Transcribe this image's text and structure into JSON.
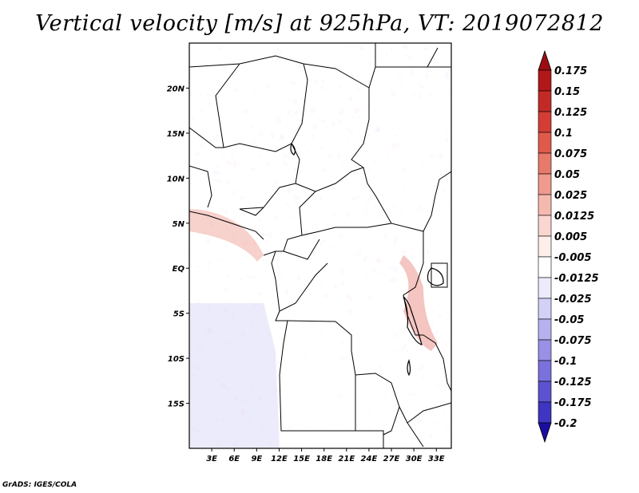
{
  "title": "Vertical velocity [m/s] at 925hPa, VT: 2019072812",
  "credit": "GrADS: IGES/COLA",
  "map": {
    "lon_range": [
      0,
      35
    ],
    "lat_range": [
      -20,
      25
    ],
    "lat_ticks": [
      {
        "value": 20,
        "label": "20N"
      },
      {
        "value": 15,
        "label": "15N"
      },
      {
        "value": 10,
        "label": "10N"
      },
      {
        "value": 5,
        "label": "5N"
      },
      {
        "value": 0,
        "label": "EQ"
      },
      {
        "value": -5,
        "label": "5S"
      },
      {
        "value": -10,
        "label": "10S"
      },
      {
        "value": -15,
        "label": "15S"
      }
    ],
    "lon_ticks": [
      {
        "value": 3,
        "label": "3E"
      },
      {
        "value": 6,
        "label": "6E"
      },
      {
        "value": 9,
        "label": "9E"
      },
      {
        "value": 12,
        "label": "12E"
      },
      {
        "value": 15,
        "label": "15E"
      },
      {
        "value": 18,
        "label": "18E"
      },
      {
        "value": 21,
        "label": "21E"
      },
      {
        "value": 24,
        "label": "24E"
      },
      {
        "value": 27,
        "label": "27E"
      },
      {
        "value": 30,
        "label": "30E"
      },
      {
        "value": 33,
        "label": "33E"
      }
    ]
  },
  "colorbar": {
    "levels": [
      {
        "label": "0.175",
        "color": "#b2181b"
      },
      {
        "label": "0.15",
        "color": "#c32a27"
      },
      {
        "label": "0.125",
        "color": "#d33d35"
      },
      {
        "label": "0.1",
        "color": "#e05a4c"
      },
      {
        "label": "0.075",
        "color": "#e87a6c"
      },
      {
        "label": "0.05",
        "color": "#f0998e"
      },
      {
        "label": "0.025",
        "color": "#f6b9b0"
      },
      {
        "label": "0.0125",
        "color": "#fad6d0"
      },
      {
        "label": "0.005",
        "color": "#fdeeea"
      },
      {
        "label": "-0.005",
        "color": "#ffffff"
      },
      {
        "label": "-0.0125",
        "color": "#ecebfb"
      },
      {
        "label": "-0.025",
        "color": "#d3d1f6"
      },
      {
        "label": "-0.05",
        "color": "#b6b2ef"
      },
      {
        "label": "-0.075",
        "color": "#9891e6"
      },
      {
        "label": "-0.1",
        "color": "#7a71dc"
      },
      {
        "label": "-0.125",
        "color": "#5c52d0"
      },
      {
        "label": "-0.175",
        "color": "#3e35c2"
      },
      {
        "label": "-0.2",
        "color": "#2418b0"
      }
    ],
    "top_cap_color": "#9c0d12",
    "bottom_cap_color": "#1a0ea0"
  }
}
